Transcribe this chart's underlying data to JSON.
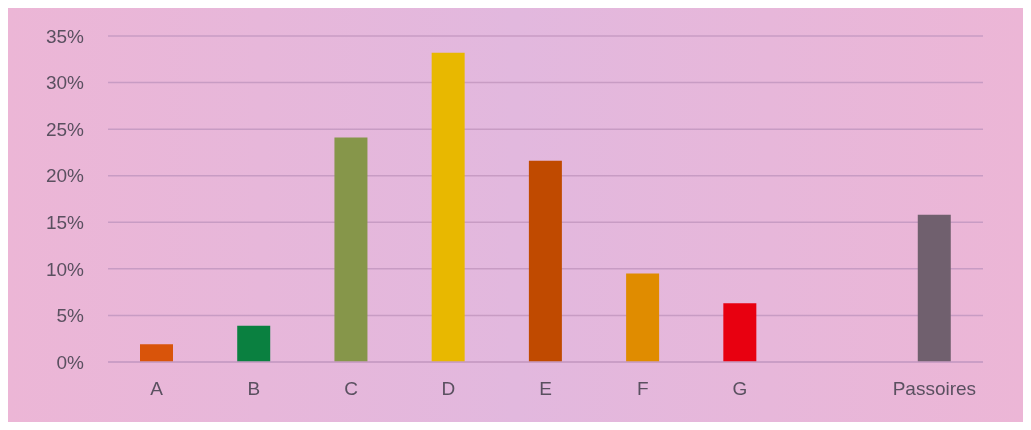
{
  "chart_data": {
    "type": "bar",
    "categories": [
      "A",
      "B",
      "C",
      "D",
      "E",
      "F",
      "G",
      null,
      "Passoires"
    ],
    "values": [
      1.9,
      3.9,
      24.1,
      33.2,
      21.6,
      9.5,
      6.3,
      null,
      15.8
    ],
    "colors": [
      "#d9540a",
      "#0a8040",
      "#86964a",
      "#e8b800",
      "#c04a00",
      "#e08c00",
      "#e80010",
      "#888888",
      "#70606e"
    ],
    "ylim": [
      0,
      35
    ],
    "yticks": [
      {
        "value": 0,
        "label": "0%"
      },
      {
        "value": 5,
        "label": "5%"
      },
      {
        "value": 10,
        "label": "10%"
      },
      {
        "value": 15,
        "label": "15%"
      },
      {
        "value": 20,
        "label": "20%"
      },
      {
        "value": 25,
        "label": "25%"
      },
      {
        "value": 30,
        "label": "30%"
      },
      {
        "value": 35,
        "label": "35%"
      }
    ],
    "grid": "y"
  }
}
